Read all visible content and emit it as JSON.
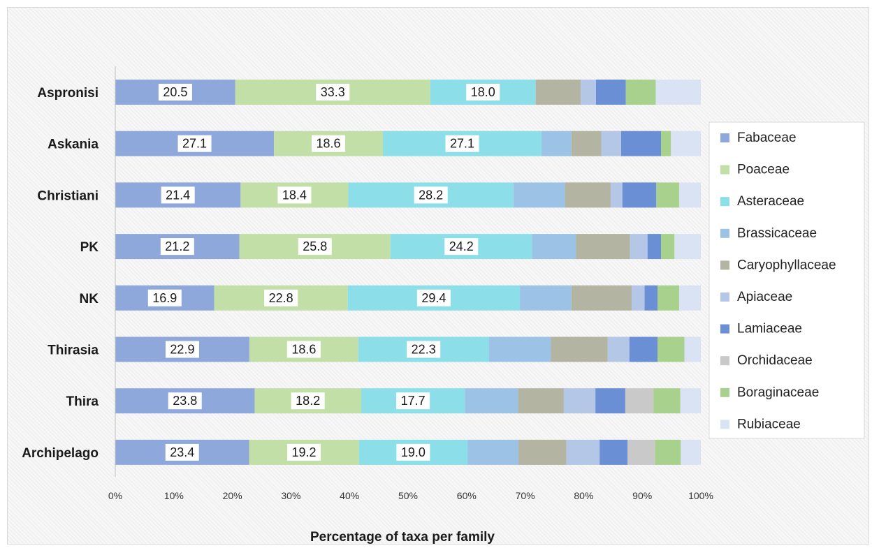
{
  "chart_data": {
    "type": "bar",
    "orientation": "horizontal",
    "stacked": "percent",
    "title": "",
    "xlabel": "Percentage of taxa per family",
    "ylabel": "",
    "xlim": [
      0,
      100
    ],
    "x_ticks": [
      "0%",
      "10%",
      "20%",
      "30%",
      "40%",
      "50%",
      "60%",
      "70%",
      "80%",
      "90%",
      "100%"
    ],
    "grid": false,
    "legend_position": "right",
    "categories": [
      "Aspronisi",
      "Askania",
      "Christiani",
      "PK",
      "NK",
      "Thirasia",
      "Thira",
      "Archipelago"
    ],
    "series": [
      {
        "name": "Fabaceae",
        "color": "#8fa8dc",
        "values": [
          20.5,
          27.1,
          21.4,
          21.2,
          16.9,
          22.9,
          23.8,
          23.4
        ],
        "labels": [
          "20.5",
          "27.1",
          "21.4",
          "21.2",
          "16.9",
          "22.9",
          "23.8",
          "23.4"
        ]
      },
      {
        "name": "Poaceae",
        "color": "#c3dfa8",
        "values": [
          33.3,
          18.6,
          18.4,
          25.8,
          22.8,
          18.6,
          18.2,
          19.2
        ],
        "labels": [
          "33.3",
          "18.6",
          "18.4",
          "25.8",
          "22.8",
          "18.6",
          "18.2",
          "19.2"
        ]
      },
      {
        "name": "Asteraceae",
        "color": "#8cdfe8",
        "values": [
          18.0,
          27.1,
          28.2,
          24.2,
          29.4,
          22.3,
          17.7,
          19.0
        ],
        "labels": [
          "18.0",
          "27.1",
          "28.2",
          "24.2",
          "29.4",
          "22.3",
          "17.7",
          "19.0"
        ]
      },
      {
        "name": "Brassicaceae",
        "color": "#9cc3e6",
        "values": [
          0,
          5.1,
          8.8,
          7.5,
          8.8,
          10.6,
          9.1,
          8.9
        ]
      },
      {
        "name": "Caryophyllaceae",
        "color": "#b4b4a2",
        "values": [
          7.7,
          5.1,
          7.8,
          9.2,
          10.3,
          9.7,
          7.8,
          8.4
        ]
      },
      {
        "name": "Apiaceae",
        "color": "#b4c7e7",
        "values": [
          2.6,
          3.4,
          2.0,
          3.0,
          2.2,
          3.7,
          5.4,
          5.8
        ]
      },
      {
        "name": "Lamiaceae",
        "color": "#6a8fd4",
        "values": [
          5.1,
          6.8,
          5.8,
          2.3,
          2.2,
          4.8,
          5.1,
          4.9
        ]
      },
      {
        "name": "Orchidaceae",
        "color": "#c9c9c9",
        "values": [
          0,
          0,
          0,
          0,
          0,
          0,
          4.8,
          4.8
        ]
      },
      {
        "name": "Boraginaceae",
        "color": "#a9d18e",
        "values": [
          5.1,
          1.7,
          3.9,
          2.3,
          3.7,
          4.6,
          4.6,
          4.5
        ]
      },
      {
        "name": "Rubiaceae",
        "color": "#dae3f3",
        "values": [
          7.7,
          5.1,
          3.7,
          4.5,
          3.7,
          2.8,
          3.5,
          3.5
        ]
      }
    ]
  }
}
